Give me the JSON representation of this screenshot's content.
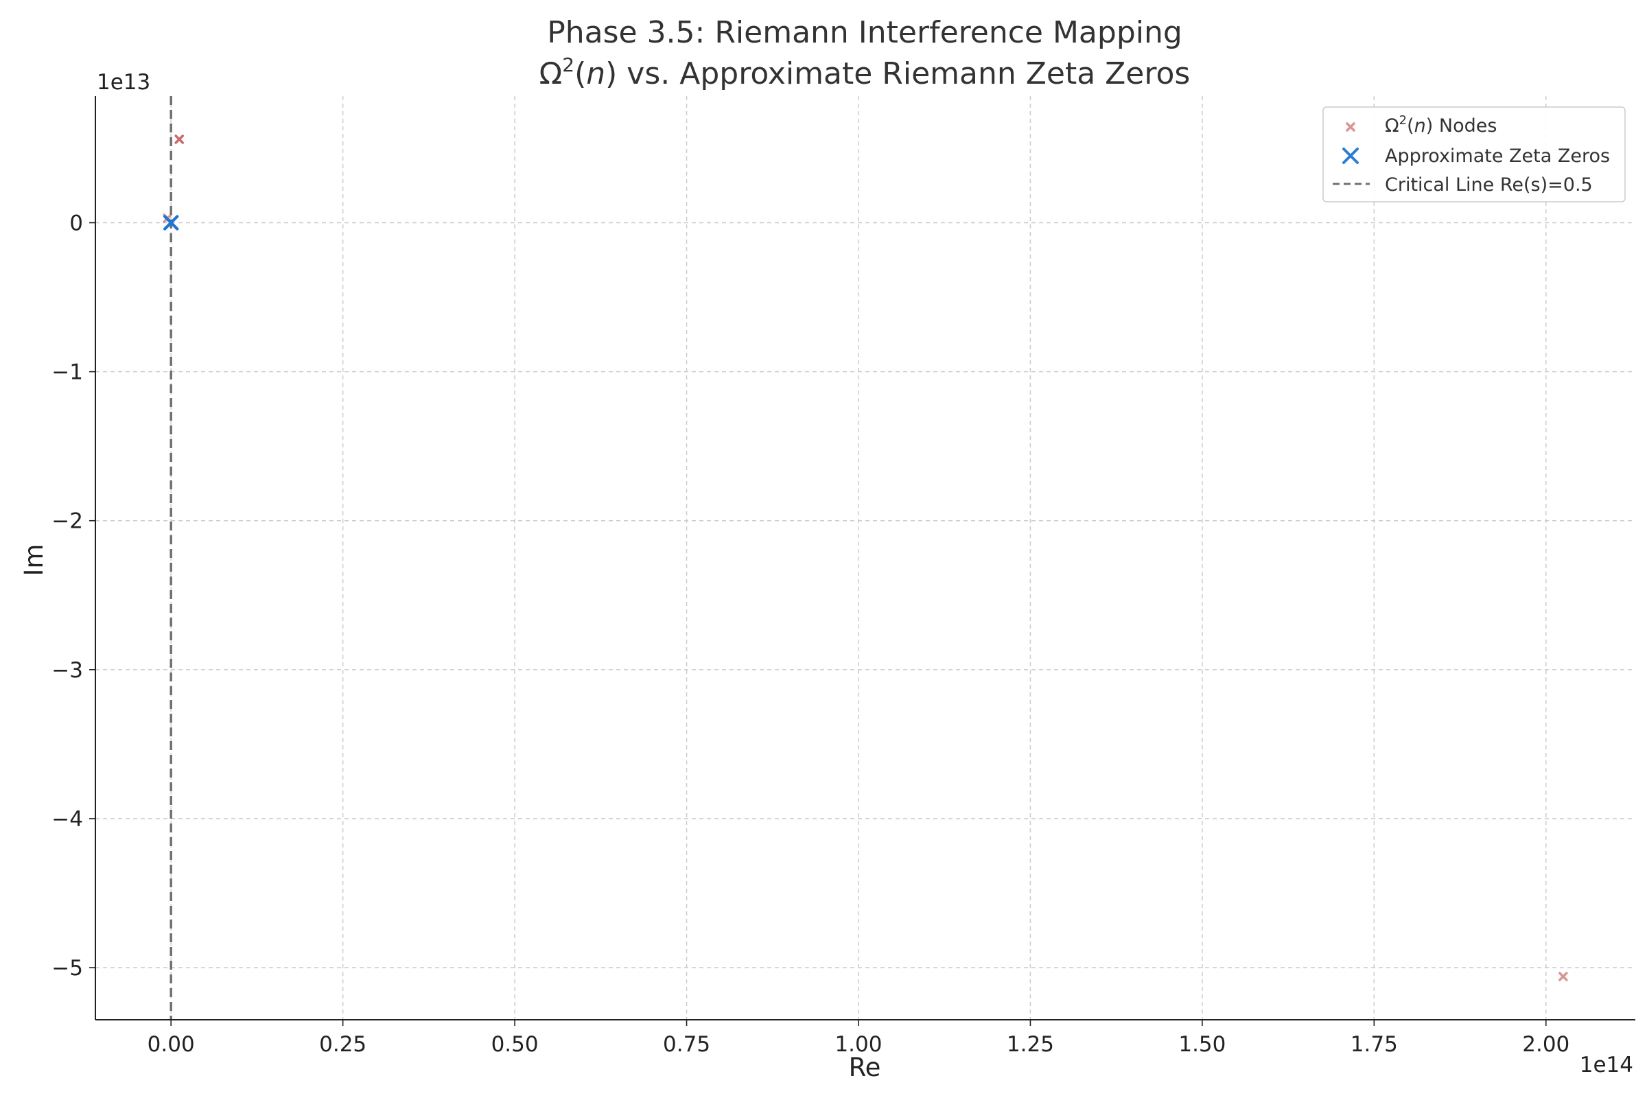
{
  "chart_data": {
    "type": "scatter",
    "title_line1": "Phase 3.5: Riemann Interference Mapping",
    "title_line2": {
      "omega": "Ω",
      "sup": "2",
      "open_paren": "(",
      "var": "n",
      "rest": ") vs. Approximate Riemann Zeta Zeros"
    },
    "xlabel": "Re",
    "ylabel": "Im",
    "x_offset_label": "1e14",
    "y_offset_label": "1e13",
    "xlim": [
      -11000000000000.0,
      213000000000000.0
    ],
    "ylim": [
      -53500000000000.0,
      8500000000000.0
    ],
    "x_ticks": [
      0,
      25000000000000.0,
      50000000000000.0,
      75000000000000.0,
      100000000000000.0,
      125000000000000.0,
      150000000000000.0,
      175000000000000.0,
      200000000000000.0
    ],
    "x_tick_labels": [
      "0.00",
      "0.25",
      "0.50",
      "0.75",
      "1.00",
      "1.25",
      "1.50",
      "1.75",
      "2.00"
    ],
    "y_ticks": [
      0,
      -10000000000000.0,
      -20000000000000.0,
      -30000000000000.0,
      -40000000000000.0,
      -50000000000000.0
    ],
    "y_tick_labels": [
      "0",
      "−1",
      "−2",
      "−3",
      "−4",
      "−5"
    ],
    "grid": true,
    "legend_position": "top-right",
    "series": [
      {
        "name": "Ω²(n) Nodes",
        "legend": {
          "omega": "Ω",
          "sup": "2",
          "open_paren": "(",
          "var": "n",
          "rest": ") Nodes"
        },
        "marker": "x-small",
        "color": "#c0504d",
        "points": [
          {
            "x": 1200000000000.0,
            "y": 5600000000000.0
          },
          {
            "x": 1200000000000.0,
            "y": 5600000000000.0
          },
          {
            "x": -500000000000.0,
            "y": 300000000000.0
          },
          {
            "x": 202500000000000.0,
            "y": -50600000000000.0
          }
        ]
      },
      {
        "name": "Approximate Zeta Zeros",
        "marker": "x-large",
        "color": "#1f77d4",
        "points": [
          {
            "x": 0.5,
            "y": 14.13
          },
          {
            "x": 0.5,
            "y": 21.02
          },
          {
            "x": 0.5,
            "y": 25.01
          },
          {
            "x": 0.5,
            "y": 30.42
          },
          {
            "x": 0.5,
            "y": 32.94
          }
        ]
      },
      {
        "name": "Critical Line Re(s)=0.5",
        "type": "vline",
        "x": 0.5,
        "color": "#707070"
      }
    ]
  }
}
